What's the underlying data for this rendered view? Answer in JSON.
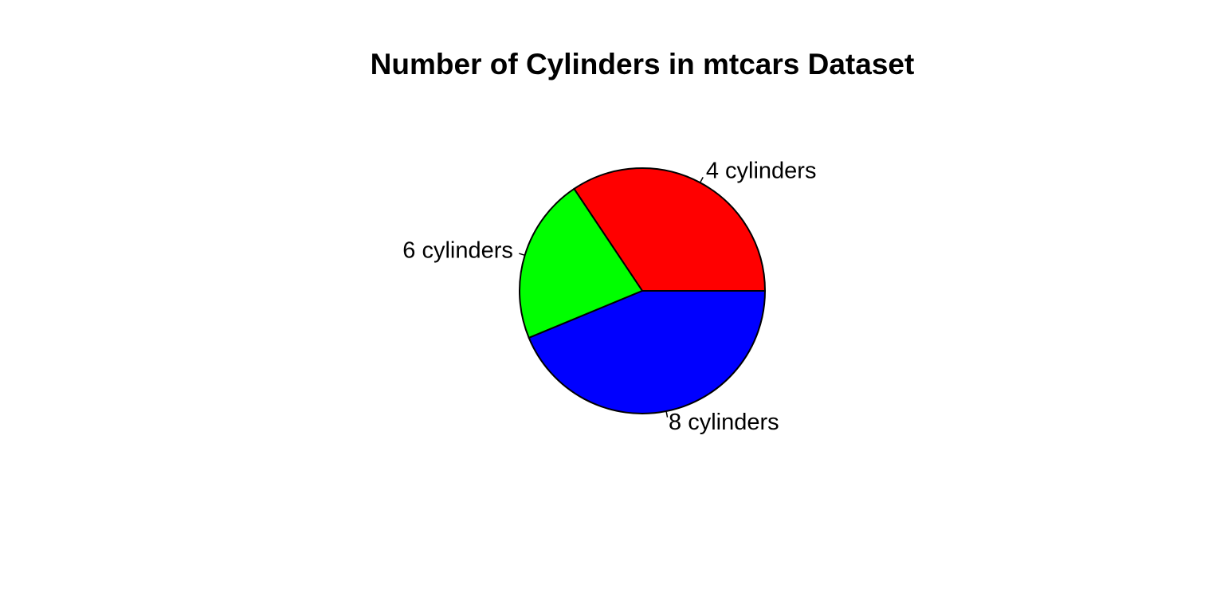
{
  "chart_data": {
    "type": "pie",
    "title": "Number of Cylinders in mtcars Dataset",
    "categories": [
      "4 cylinders",
      "6 cylinders",
      "8 cylinders"
    ],
    "values": [
      11,
      7,
      14
    ],
    "colors": [
      "#FF0000",
      "#00FF00",
      "#0000FF"
    ],
    "start_angle_deg": 0,
    "direction": "counterclockwise",
    "legend": "none"
  }
}
